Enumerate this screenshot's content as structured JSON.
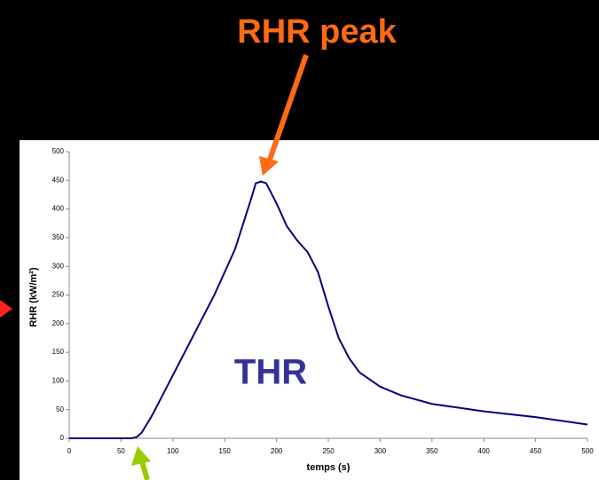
{
  "chart_data": {
    "type": "line",
    "annotations": {
      "peak": "RHR peak",
      "area": "THR"
    },
    "xlabel": "temps (s)",
    "ylabel": "RHR (kW/m²)",
    "series": [
      {
        "name": "RHR",
        "color": "#000080",
        "x": [
          0,
          60,
          65,
          70,
          80,
          100,
          120,
          140,
          160,
          175,
          180,
          185,
          190,
          200,
          210,
          220,
          230,
          240,
          250,
          260,
          270,
          280,
          300,
          320,
          350,
          400,
          450,
          500
        ],
        "values": [
          0,
          0,
          2,
          10,
          40,
          110,
          180,
          250,
          330,
          415,
          445,
          448,
          445,
          410,
          370,
          345,
          325,
          290,
          230,
          175,
          140,
          115,
          90,
          75,
          60,
          47,
          37,
          24
        ]
      }
    ],
    "xlim": [
      0,
      500
    ],
    "xticks": [
      0,
      50,
      100,
      150,
      200,
      250,
      300,
      350,
      400,
      450,
      500
    ],
    "ylim": [
      0,
      500
    ],
    "yticks": [
      0,
      50,
      100,
      150,
      200,
      250,
      300,
      350,
      400,
      450,
      500
    ]
  }
}
